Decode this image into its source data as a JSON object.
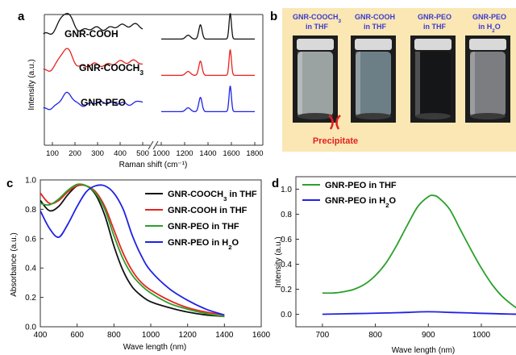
{
  "panels": {
    "a": {
      "label": "a",
      "ylabel": "Intensity (a.u.)",
      "xlabel": "Raman shift (cm⁻¹)",
      "xticks_left": [
        "100",
        "200",
        "300",
        "400",
        "500"
      ],
      "xticks_right": [
        "1000",
        "1200",
        "1400",
        "1600",
        "1800"
      ],
      "series_labels": [
        "GNR-COOH",
        "GNR-COOCH3",
        "GNR-PEO"
      ],
      "colors": [
        "#111111",
        "#e8231f",
        "#1f22e6"
      ]
    },
    "b": {
      "label": "b",
      "vials": [
        {
          "line1": "GNR-COOCH3",
          "line2": "in THF"
        },
        {
          "line1": "GNR-COOH",
          "line2": "in THF"
        },
        {
          "line1": "GNR-PEO",
          "line2": "in THF"
        },
        {
          "line1": "GNR-PEO",
          "line2": "in H2O"
        }
      ],
      "precipitate": "Precipitate",
      "bg_color": "#fbe7b4",
      "label_color": "#3a3acf"
    },
    "c": {
      "label": "c",
      "chart_data": {
        "type": "line",
        "xlabel": "Wave length (nm)",
        "ylabel": "Absorbance (a.u.)",
        "xlim": [
          400,
          1600
        ],
        "ylim": [
          0.0,
          1.0
        ],
        "xticks": [
          400,
          600,
          800,
          1000,
          1200,
          1400,
          1600
        ],
        "yticks": [
          0.0,
          0.2,
          0.4,
          0.6,
          0.8,
          1.0
        ],
        "legend_position": "top-right",
        "series": [
          {
            "name": "GNR-COOCH3 in THF",
            "color": "#111111",
            "x": [
              400,
              450,
              500,
              550,
              600,
              650,
              700,
              750,
              800,
              850,
              900,
              950,
              1000,
              1100,
              1200,
              1300,
              1400
            ],
            "y": [
              0.86,
              0.79,
              0.82,
              0.9,
              0.96,
              0.96,
              0.9,
              0.76,
              0.55,
              0.38,
              0.27,
              0.21,
              0.17,
              0.13,
              0.1,
              0.08,
              0.07
            ]
          },
          {
            "name": "GNR-COOH in THF",
            "color": "#e8231f",
            "x": [
              400,
              450,
              500,
              550,
              600,
              650,
              700,
              750,
              800,
              850,
              900,
              950,
              1000,
              1100,
              1200,
              1300,
              1400
            ],
            "y": [
              0.91,
              0.84,
              0.86,
              0.92,
              0.96,
              0.96,
              0.92,
              0.82,
              0.66,
              0.5,
              0.38,
              0.3,
              0.25,
              0.18,
              0.13,
              0.1,
              0.08
            ]
          },
          {
            "name": "GNR-PEO in THF",
            "color": "#2aa02a",
            "x": [
              400,
              450,
              500,
              550,
              600,
              650,
              700,
              750,
              800,
              850,
              900,
              950,
              1000,
              1100,
              1200,
              1300,
              1400
            ],
            "y": [
              0.84,
              0.83,
              0.87,
              0.93,
              0.97,
              0.96,
              0.91,
              0.8,
              0.62,
              0.46,
              0.35,
              0.28,
              0.23,
              0.16,
              0.12,
              0.09,
              0.07
            ]
          },
          {
            "name": "GNR-PEO in H2O",
            "color": "#1f22e6",
            "x": [
              400,
              450,
              500,
              550,
              600,
              650,
              700,
              750,
              800,
              850,
              900,
              950,
              1000,
              1100,
              1200,
              1300,
              1400
            ],
            "y": [
              0.79,
              0.67,
              0.61,
              0.7,
              0.82,
              0.92,
              0.96,
              0.96,
              0.91,
              0.8,
              0.62,
              0.48,
              0.38,
              0.26,
              0.18,
              0.12,
              0.08
            ]
          }
        ]
      }
    },
    "d": {
      "label": "d",
      "chart_data": {
        "type": "line",
        "xlabel": "Wave length (nm)",
        "ylabel": "Intensity (a.u.)",
        "xlim": [
          650,
          1070
        ],
        "ylim": [
          -0.1,
          1.1
        ],
        "xticks": [
          700,
          800,
          900,
          1000
        ],
        "yticks": [
          0.0,
          0.2,
          0.4,
          0.6,
          0.8,
          1.0
        ],
        "legend_position": "top-left",
        "series": [
          {
            "name": "GNR-PEO in THF",
            "color": "#2aa02a",
            "x": [
              700,
              720,
              740,
              760,
              780,
              800,
              820,
              840,
              860,
              880,
              900,
              910,
              920,
              940,
              960,
              980,
              1000,
              1020,
              1040,
              1060,
              1070
            ],
            "y": [
              0.17,
              0.17,
              0.18,
              0.2,
              0.24,
              0.31,
              0.41,
              0.55,
              0.71,
              0.86,
              0.94,
              0.95,
              0.93,
              0.84,
              0.68,
              0.52,
              0.37,
              0.24,
              0.14,
              0.07,
              0.04
            ]
          },
          {
            "name": "GNR-PEO in H2O",
            "color": "#1f22e6",
            "x": [
              700,
              760,
              820,
              860,
              900,
              940,
              980,
              1020,
              1070
            ],
            "y": [
              0.0,
              0.005,
              0.01,
              0.015,
              0.02,
              0.015,
              0.01,
              0.005,
              0.0
            ]
          }
        ]
      }
    }
  }
}
